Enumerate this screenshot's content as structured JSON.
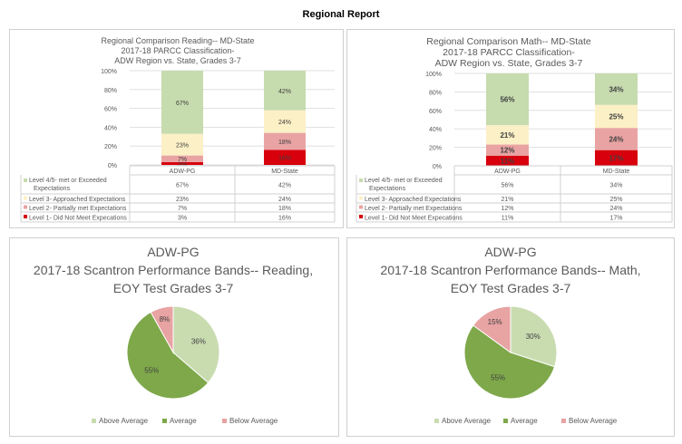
{
  "page_title": "Regional Report",
  "colors": {
    "level4": "#c6dbae",
    "level3": "#fcf0c6",
    "level2": "#e9a3a3",
    "level1": "#d8000c",
    "above_average": "#c9dcb0",
    "average": "#7ea84a",
    "below_average": "#e8a3a3"
  },
  "chart_data": [
    {
      "type": "bar",
      "stacked": true,
      "title": [
        "Regional Comparison Reading-- MD-State",
        "2017-18 PARCC Classification-",
        "ADW Region vs. State, Grades 3-7"
      ],
      "categories": [
        "ADW-PG",
        "MD-State"
      ],
      "ylim": [
        0,
        100
      ],
      "yticks": [
        "0%",
        "20%",
        "40%",
        "60%",
        "80%",
        "100%"
      ],
      "grid": true,
      "legend": "data-table",
      "series": [
        {
          "name": "Level 1- Did Not Meet Expecations",
          "values": [
            3,
            16
          ],
          "labels": [
            "3%",
            "16%"
          ],
          "color": "#d8000c"
        },
        {
          "name": "Level 2- Partially met Expectations",
          "values": [
            7,
            18
          ],
          "labels": [
            "7%",
            "18%"
          ],
          "color": "#e9a3a3"
        },
        {
          "name": "Level 3- Approached Expectations",
          "values": [
            23,
            24
          ],
          "labels": [
            "23%",
            "24%"
          ],
          "color": "#fcf0c6"
        },
        {
          "name": "Level 4/5- met or Exceeded Expectations",
          "values": [
            67,
            42
          ],
          "labels": [
            "67%",
            "42%"
          ],
          "color": "#c6dbae"
        }
      ]
    },
    {
      "type": "bar",
      "stacked": true,
      "title": [
        "Regional Comparison Math-- MD-State",
        "2017-18 PARCC Classification-",
        "ADW Region vs. State, Grades 3-7"
      ],
      "categories": [
        "ADW-PG",
        "MD-State"
      ],
      "ylim": [
        0,
        100
      ],
      "yticks": [
        "0%",
        "20%",
        "40%",
        "60%",
        "80%",
        "100%"
      ],
      "grid": true,
      "legend": "data-table",
      "series": [
        {
          "name": "Level 1- Did Not Meet Expecations",
          "values": [
            11,
            17
          ],
          "labels": [
            "11%",
            "17%"
          ],
          "color": "#d8000c"
        },
        {
          "name": "Level 2- Partially met Expectations",
          "values": [
            12,
            24
          ],
          "labels": [
            "12%",
            "24%"
          ],
          "color": "#e9a3a3"
        },
        {
          "name": "Level 3- Approached Expectations",
          "values": [
            21,
            25
          ],
          "labels": [
            "21%",
            "25%"
          ],
          "color": "#fcf0c6"
        },
        {
          "name": "Level 4/5- met or Exceeded Expectations",
          "values": [
            56,
            34
          ],
          "labels": [
            "56%",
            "34%"
          ],
          "color": "#c6dbae"
        }
      ]
    },
    {
      "type": "pie",
      "title": [
        "ADW-PG",
        "2017-18 Scantron Performance Bands-- Reading,",
        "EOY Test Grades 3-7"
      ],
      "legend": "bottom",
      "slices": [
        {
          "name": "Above Average",
          "value": 36,
          "label": "36%",
          "color": "#c9dcb0"
        },
        {
          "name": "Average",
          "value": 55,
          "label": "55%",
          "color": "#7ea84a"
        },
        {
          "name": "Below Average",
          "value": 8,
          "label": "8%",
          "color": "#e8a3a3"
        }
      ]
    },
    {
      "type": "pie",
      "title": [
        "ADW-PG",
        "2017-18 Scantron Performance Bands-- Math,",
        "EOY Test Grades 3-7"
      ],
      "legend": "bottom",
      "slices": [
        {
          "name": "Above Average",
          "value": 30,
          "label": "30%",
          "color": "#c9dcb0"
        },
        {
          "name": "Average",
          "value": 55,
          "label": "55%",
          "color": "#7ea84a"
        },
        {
          "name": "Below Average",
          "value": 15,
          "label": "15%",
          "color": "#e8a3a3"
        }
      ]
    }
  ]
}
